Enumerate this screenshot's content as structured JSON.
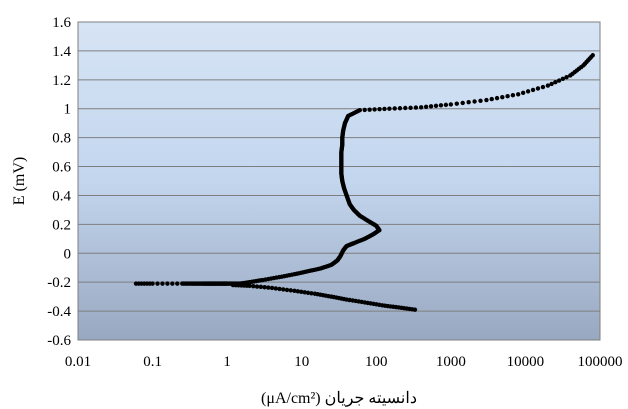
{
  "chart_data": {
    "type": "scatter",
    "title": "",
    "xlabel": "(μA/cm²) دانسیته جریان",
    "ylabel": "E (mV)",
    "xscale": "log",
    "xlim": [
      0.01,
      100000
    ],
    "ylim": [
      -0.6,
      1.6
    ],
    "x_ticks": [
      "0.01",
      "0.1",
      "1",
      "10",
      "100",
      "1000",
      "10000",
      "100000"
    ],
    "y_ticks": [
      "-0.6",
      "-0.4",
      "-0.2",
      "0",
      "0.2",
      "0.4",
      "0.6",
      "0.8",
      "1",
      "1.2",
      "1.4",
      "1.6"
    ],
    "grid": "horizontal",
    "legend": "none",
    "colors": {
      "background_top": "#d6e4f5",
      "background_mid": "#c3d6ee",
      "background_bottom": "#98a8c0",
      "grid": "#7f7f7f",
      "marker": "#000000"
    },
    "series": [
      {
        "marker": "dot",
        "points": [
          [
            0.06,
            -0.21
          ],
          [
            0.1,
            -0.21
          ],
          [
            0.25,
            -0.21
          ],
          [
            0.33,
            -0.21
          ],
          [
            0.4,
            -0.21
          ],
          [
            0.48,
            -0.21
          ],
          [
            0.55,
            -0.21
          ],
          [
            0.62,
            -0.21
          ],
          [
            0.7,
            -0.21
          ],
          [
            0.8,
            -0.21
          ],
          [
            0.9,
            -0.21
          ],
          [
            1.0,
            -0.21
          ],
          [
            1.2,
            -0.21
          ],
          [
            1.5,
            -0.21
          ],
          [
            2,
            -0.2
          ],
          [
            3,
            -0.185
          ],
          [
            5,
            -0.165
          ],
          [
            8,
            -0.145
          ],
          [
            12,
            -0.125
          ],
          [
            18,
            -0.105
          ],
          [
            25,
            -0.08
          ],
          [
            30,
            -0.05
          ],
          [
            33,
            -0.02
          ],
          [
            36,
            0.02
          ],
          [
            40,
            0.05
          ],
          [
            50,
            0.07
          ],
          [
            70,
            0.1
          ],
          [
            90,
            0.13
          ],
          [
            110,
            0.16
          ],
          [
            100,
            0.19
          ],
          [
            80,
            0.22
          ],
          [
            60,
            0.26
          ],
          [
            50,
            0.3
          ],
          [
            44,
            0.34
          ],
          [
            40,
            0.4
          ],
          [
            37,
            0.45
          ],
          [
            35,
            0.5
          ],
          [
            34,
            0.55
          ],
          [
            34,
            0.6
          ],
          [
            34,
            0.65
          ],
          [
            34,
            0.7
          ],
          [
            35,
            0.75
          ],
          [
            35,
            0.8
          ],
          [
            36,
            0.85
          ],
          [
            38,
            0.9
          ],
          [
            42,
            0.95
          ],
          [
            60,
            0.99
          ],
          [
            150,
            1.0
          ],
          [
            400,
            1.01
          ],
          [
            1000,
            1.03
          ],
          [
            3000,
            1.06
          ],
          [
            8000,
            1.1
          ],
          [
            20000,
            1.16
          ],
          [
            40000,
            1.23
          ],
          [
            60000,
            1.3
          ],
          [
            80000,
            1.37
          ],
          [
            1.2,
            -0.22
          ],
          [
            2,
            -0.225
          ],
          [
            4,
            -0.24
          ],
          [
            8,
            -0.26
          ],
          [
            15,
            -0.28
          ],
          [
            25,
            -0.3
          ],
          [
            40,
            -0.32
          ],
          [
            70,
            -0.34
          ],
          [
            120,
            -0.36
          ],
          [
            200,
            -0.375
          ],
          [
            330,
            -0.39
          ]
        ]
      }
    ]
  }
}
